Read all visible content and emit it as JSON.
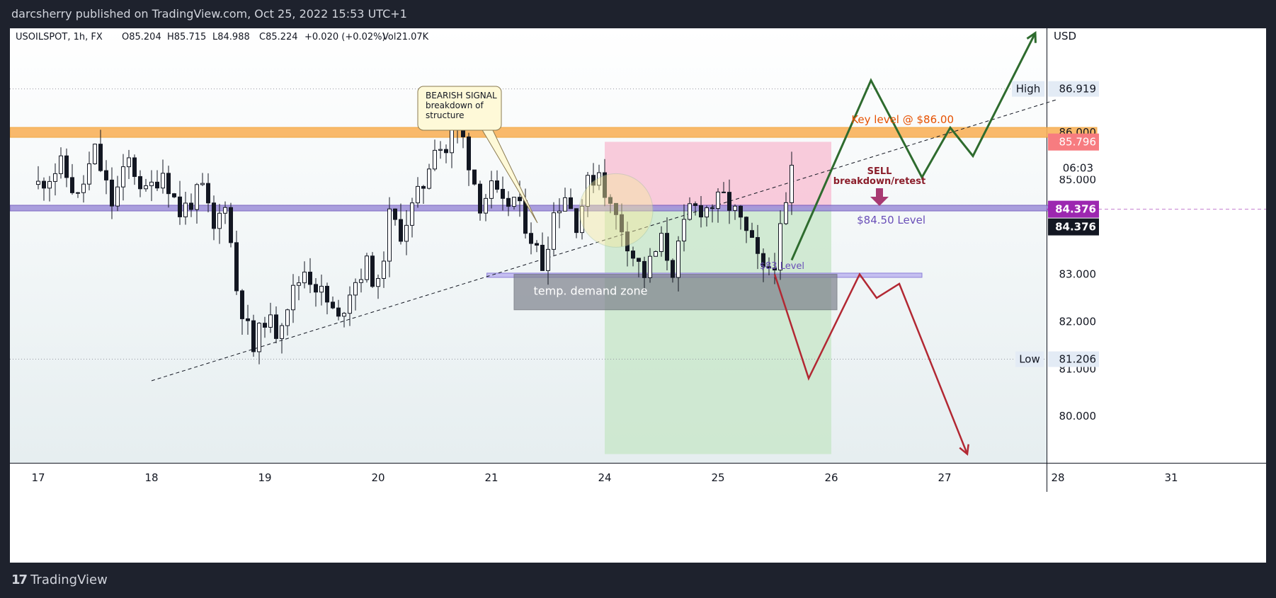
{
  "header": {
    "publisher": "darcsherry published on TradingView.com, Oct 25, 2022 15:53 UTC+1"
  },
  "footer": {
    "logo_mark": "17",
    "brand": "TradingView"
  },
  "colors": {
    "bull": "#131722",
    "bear": "#131722",
    "key_band": "#f9b25c",
    "level_band": "#9c8fd9",
    "profit_zone": "#c8e6c9",
    "stop_zone": "#f8bbd0",
    "up_path": "#2e6b2e",
    "down_path": "#b22833",
    "purple_label": "#6a4fb8",
    "orange_label": "#e65100",
    "sell_label": "#8b1e2b",
    "high_low_badge": "#e3ebf5",
    "price_red": "#f77c80",
    "price_purple": "#9c27b0",
    "price_black": "#131722"
  },
  "chart_data": {
    "type": "candlestick",
    "title": "USOILSPOT, 1h, FX",
    "ohlc_header": {
      "symbol": "USOILSPOT, 1h, FX",
      "open": "O85.204",
      "high": "H85.715",
      "low": "L84.988",
      "close": "C85.224",
      "change": "+0.020 (+0.02%)",
      "volume": "Vol21.07K"
    },
    "currency": "USD",
    "y_axis": {
      "ylim": [
        79,
        88.2
      ],
      "ticks": [
        "80.000",
        "81.000",
        "82.000",
        "83.000",
        "84.000",
        "85.000",
        "86.000"
      ],
      "tick_values": [
        80,
        81,
        82,
        83,
        84,
        85,
        86
      ]
    },
    "x_axis": {
      "ticks": [
        "17",
        "18",
        "19",
        "20",
        "21",
        "24",
        "25",
        "26",
        "27",
        "28",
        "31"
      ],
      "tick_positions": [
        0,
        1,
        2,
        3,
        4,
        5,
        6,
        7,
        8,
        9,
        10
      ]
    },
    "price_badges": {
      "high_label": "High",
      "high_value": "86.919",
      "high_price": 86.919,
      "low_label": "Low",
      "low_value": "81.206",
      "low_price": 81.206,
      "red_value": "85.796",
      "red_price": 85.796,
      "countdown": "06:03",
      "purple_value": "84.376",
      "black_value": "84.376",
      "current_price": 84.376
    },
    "candle_path": [
      [
        0.0,
        84.9
      ],
      [
        0.2,
        85.3
      ],
      [
        0.35,
        84.6
      ],
      [
        0.5,
        85.6
      ],
      [
        0.65,
        84.5
      ],
      [
        0.8,
        85.4
      ],
      [
        0.95,
        84.7
      ],
      [
        1.1,
        85.2
      ],
      [
        1.25,
        84.3
      ],
      [
        1.45,
        84.8
      ],
      [
        1.55,
        83.9
      ],
      [
        1.65,
        84.6
      ],
      [
        1.75,
        82.7
      ],
      [
        1.9,
        81.4
      ],
      [
        2.0,
        82.1
      ],
      [
        2.1,
        81.8
      ],
      [
        2.2,
        82.4
      ],
      [
        2.35,
        83.1
      ],
      [
        2.5,
        82.6
      ],
      [
        2.65,
        82.0
      ],
      [
        2.75,
        82.7
      ],
      [
        2.9,
        83.2
      ],
      [
        3.0,
        82.7
      ],
      [
        3.1,
        84.2
      ],
      [
        3.2,
        83.9
      ],
      [
        3.3,
        84.4
      ],
      [
        3.4,
        84.9
      ],
      [
        3.5,
        85.8
      ],
      [
        3.6,
        85.6
      ],
      [
        3.7,
        86.3
      ],
      [
        3.8,
        85.4
      ],
      [
        3.9,
        84.5
      ],
      [
        4.0,
        84.8
      ],
      [
        4.1,
        84.4
      ],
      [
        4.2,
        84.6
      ],
      [
        4.35,
        83.8
      ],
      [
        4.45,
        83.2
      ],
      [
        4.55,
        84.3
      ],
      [
        4.65,
        84.7
      ],
      [
        4.75,
        84.1
      ],
      [
        4.85,
        84.9
      ],
      [
        4.95,
        85.2
      ],
      [
        5.05,
        84.4
      ],
      [
        5.15,
        84.0
      ],
      [
        5.25,
        83.4
      ],
      [
        5.35,
        83.0
      ],
      [
        5.5,
        83.7
      ],
      [
        5.6,
        83.1
      ],
      [
        5.75,
        84.4
      ],
      [
        5.9,
        84.4
      ],
      [
        6.05,
        84.6
      ],
      [
        6.15,
        84.3
      ],
      [
        6.3,
        83.6
      ],
      [
        6.4,
        83.0
      ],
      [
        6.5,
        83.3
      ],
      [
        6.6,
        84.4
      ],
      [
        6.65,
        85.2
      ]
    ],
    "annotations": {
      "key_level_label": "Key level @ $86.00",
      "key_level_price": 86.0,
      "level_8450_label": "$84.50 Level",
      "level_8450_price": 84.4,
      "level_83_label": "$83 Level",
      "level_83_price": 82.98,
      "demand_zone_label": "temp. demand zone",
      "demand_zone": {
        "x0": 4.2,
        "x1": 7.05,
        "y_top": 83.0,
        "y_bottom": 82.25
      },
      "callout_text": [
        "BEARISH SIGNAL",
        "breakdown of",
        "structure"
      ],
      "sell_title": "SELL",
      "sell_subtitle": "breakdown/retest",
      "long_position": {
        "x0": 5.0,
        "x1": 7.0,
        "entry": 84.4,
        "target": 85.8,
        "stop_bottom": 79.2
      },
      "trendline": {
        "x0": 1.0,
        "y0": 80.75,
        "x1": 9.0,
        "y1": 86.7
      },
      "up_path": [
        [
          6.65,
          83.3
        ],
        [
          7.35,
          87.1
        ],
        [
          7.8,
          85.05
        ],
        [
          8.05,
          86.1
        ],
        [
          8.25,
          85.5
        ],
        [
          8.8,
          88.1
        ]
      ],
      "down_path": [
        [
          6.5,
          83.0
        ],
        [
          6.8,
          80.8
        ],
        [
          7.25,
          83.0
        ],
        [
          7.4,
          82.5
        ],
        [
          7.6,
          82.8
        ],
        [
          8.2,
          79.2
        ]
      ],
      "circle": {
        "x": 5.1,
        "y": 84.35
      }
    }
  }
}
